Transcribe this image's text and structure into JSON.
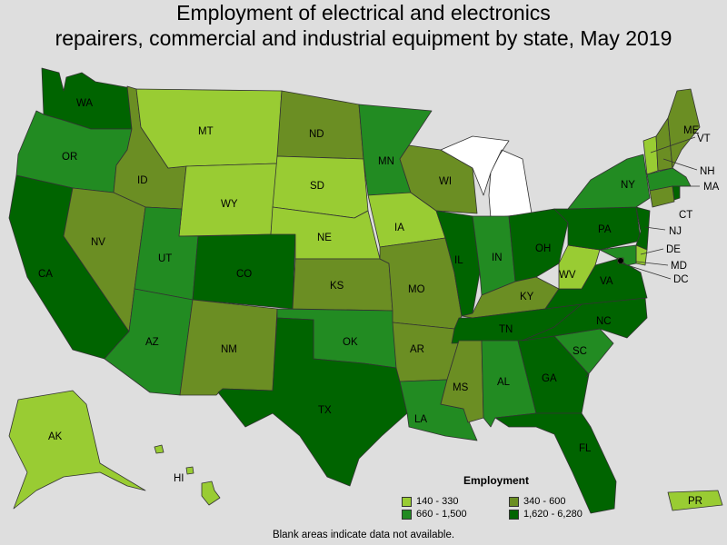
{
  "title": {
    "line1": "Employment of electrical and electronics",
    "line2": "repairers, commercial and industrial equipment by state, May 2019"
  },
  "colors": {
    "c1": "#99cc33",
    "c2": "#6b8e23",
    "c3": "#228b22",
    "c4": "#006400",
    "na": "#ffffff",
    "background": "#dedede"
  },
  "legend": {
    "title": "Employment",
    "items": [
      {
        "label": "140 - 330",
        "class": "c1"
      },
      {
        "label": "340 - 600",
        "class": "c2"
      },
      {
        "label": "660 - 1,500",
        "class": "c3"
      },
      {
        "label": "1,620 - 6,280",
        "class": "c4"
      }
    ]
  },
  "footnote": "Blank areas indicate data not available.",
  "states": {
    "WA": "c4",
    "OR": "c3",
    "CA": "c4",
    "ID": "c2",
    "NV": "c2",
    "MT": "c1",
    "WY": "c1",
    "UT": "c3",
    "AZ": "c3",
    "CO": "c4",
    "NM": "c2",
    "ND": "c2",
    "SD": "c1",
    "NE": "c1",
    "KS": "c2",
    "OK": "c3",
    "TX": "c4",
    "MN": "c3",
    "IA": "c1",
    "MO": "c2",
    "AR": "c2",
    "LA": "c3",
    "WI": "c2",
    "IL": "c4",
    "MI": "na",
    "IN": "c3",
    "OH": "c4",
    "KY": "c2",
    "TN": "c4",
    "MS": "c2",
    "AL": "c3",
    "GA": "c4",
    "FL": "c4",
    "SC": "c3",
    "NC": "c4",
    "VA": "c4",
    "WV": "c1",
    "PA": "c4",
    "NY": "c3",
    "NJ": "c4",
    "DE": "c1",
    "MD": "c3",
    "DC": "c2",
    "CT": "c2",
    "RI": "c4",
    "MA": "c3",
    "VT": "c1",
    "NH": "c2",
    "ME": "c2",
    "AK": "c1",
    "HI": "c1",
    "PR": "c1"
  },
  "labels": {
    "WA": "WA",
    "OR": "OR",
    "CA": "CA",
    "ID": "ID",
    "NV": "NV",
    "MT": "MT",
    "WY": "WY",
    "UT": "UT",
    "AZ": "AZ",
    "CO": "CO",
    "NM": "NM",
    "ND": "ND",
    "SD": "SD",
    "NE": "NE",
    "KS": "KS",
    "OK": "OK",
    "TX": "TX",
    "MN": "MN",
    "IA": "IA",
    "MO": "MO",
    "AR": "AR",
    "LA": "LA",
    "WI": "WI",
    "IL": "IL",
    "IN": "IN",
    "OH": "OH",
    "KY": "KY",
    "TN": "TN",
    "MS": "MS",
    "AL": "AL",
    "GA": "GA",
    "FL": "FL",
    "SC": "SC",
    "NC": "NC",
    "VA": "VA",
    "WV": "WV",
    "PA": "PA",
    "NY": "NY",
    "NJ": "NJ",
    "DE": "DE",
    "MD": "MD",
    "DC": "DC",
    "CT": "CT",
    "MA": "MA",
    "VT": "VT",
    "NH": "NH",
    "ME": "ME",
    "AK": "AK",
    "HI": "HI",
    "PR": "PR"
  }
}
